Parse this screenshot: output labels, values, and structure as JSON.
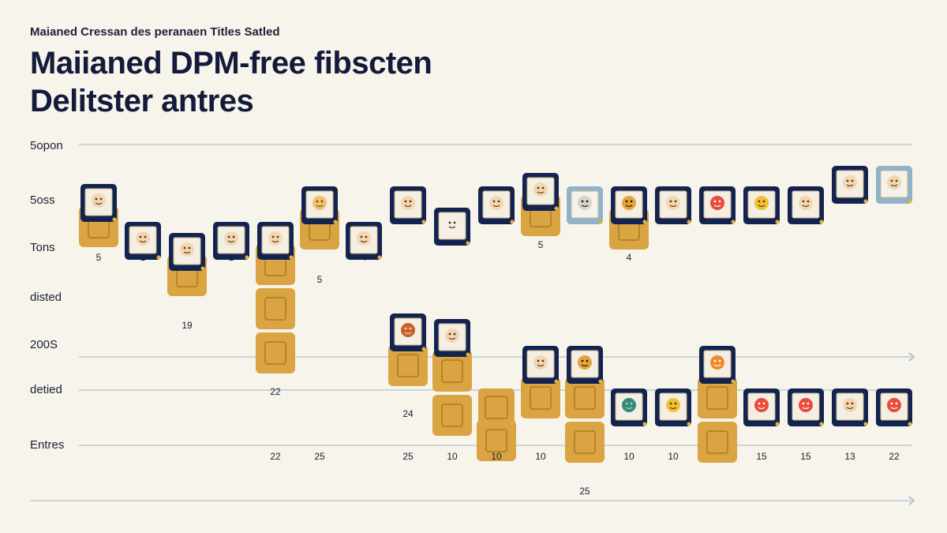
{
  "subtitle": "Maianed Cressan des peranaen Titles Satled",
  "title_line1": "Maiianed DPM-free fibscten",
  "title_line2": "Delitster antres",
  "colors": {
    "background": "#f7f4ec",
    "tile_navy": "#13234f",
    "tile_light": "#8fb3c9",
    "bar_gold": "#d9a441",
    "bar_gold_dark": "#b98428",
    "axis": "#9fb3c6",
    "marker": "#e0b040"
  },
  "chart_data": {
    "type": "bar",
    "row_labels": [
      "5opon",
      "5oss",
      "Tons",
      "disted",
      "200S",
      "detied",
      "Entres"
    ],
    "columns": [
      {
        "top_icon": "portrait-icon",
        "tile_tone": "navy",
        "count_label": "5",
        "stack_blocks": 1
      },
      {
        "top_icon": "portrait-icon",
        "tile_tone": "navy",
        "count_label": "1",
        "stack_blocks": 0
      },
      {
        "top_icon": "portrait-icon",
        "tile_tone": "navy",
        "count_label": "19",
        "stack_blocks": 1
      },
      {
        "top_icon": "portrait-icon",
        "tile_tone": "navy",
        "count_label": "1",
        "stack_blocks": 0
      },
      {
        "top_icon": "portrait-icon",
        "tile_tone": "navy",
        "count_label": "22",
        "stack_blocks": 3
      },
      {
        "top_icon": "crown-icon",
        "tile_tone": "navy",
        "count_label": "5",
        "stack_blocks": 1
      },
      {
        "top_icon": "portrait-icon",
        "tile_tone": "navy",
        "count_label": "4",
        "stack_blocks": 0
      },
      {
        "top_icon": "portrait-icon",
        "tile_tone": "navy",
        "count_label": "",
        "stack_blocks": 0
      },
      {
        "top_icon": "person-icon",
        "tile_tone": "navy",
        "count_label": "",
        "stack_blocks": 0
      },
      {
        "top_icon": "portrait-icon",
        "tile_tone": "navy",
        "count_label": "",
        "stack_blocks": 0
      },
      {
        "top_icon": "portrait-icon",
        "tile_tone": "navy",
        "count_label": "5",
        "stack_blocks": 1
      },
      {
        "top_icon": "mask-icon",
        "tile_tone": "light",
        "count_label": "",
        "stack_blocks": 0
      },
      {
        "top_icon": "diamond-icon",
        "tile_tone": "navy",
        "count_label": "4",
        "stack_blocks": 1
      },
      {
        "top_icon": "portrait-icon",
        "tile_tone": "navy",
        "count_label": "",
        "stack_blocks": 0
      },
      {
        "top_icon": "card-icon",
        "tile_tone": "navy",
        "count_label": "",
        "stack_blocks": 0
      },
      {
        "top_icon": "lion-icon",
        "tile_tone": "navy",
        "count_label": "",
        "stack_blocks": 0
      },
      {
        "top_icon": "portrait-icon",
        "tile_tone": "navy",
        "count_label": "",
        "stack_blocks": 0
      },
      {
        "top_icon": "portrait-icon",
        "tile_tone": "navy",
        "count_label": "",
        "stack_blocks": 0
      },
      {
        "top_icon": "portrait-icon",
        "tile_tone": "light",
        "count_label": "",
        "stack_blocks": 0
      }
    ],
    "lower_columns": [
      {
        "icon": "pie-icon",
        "tile_tone": "navy",
        "count_label": "24",
        "stack_blocks": 1,
        "bottom_label": "25"
      },
      {
        "icon": "portrait-icon",
        "tile_tone": "navy",
        "count_label": "",
        "stack_blocks": 2,
        "bottom_label": "10"
      },
      {
        "icon": "",
        "tile_tone": "gold",
        "count_label": "",
        "stack_blocks": 1,
        "bottom_label": "10"
      },
      {
        "icon": "portrait-icon",
        "tile_tone": "navy",
        "count_label": "",
        "stack_blocks": 1,
        "bottom_label": "10"
      },
      {
        "icon": "diamond-icon",
        "tile_tone": "navy",
        "count_label": "25",
        "stack_blocks": 2,
        "bottom_label": ""
      },
      {
        "icon": "bird-icon",
        "tile_tone": "navy",
        "count_label": "",
        "stack_blocks": 0,
        "bottom_label": "10"
      },
      {
        "icon": "lion-icon",
        "tile_tone": "navy",
        "count_label": "",
        "stack_blocks": 0,
        "bottom_label": "10"
      },
      {
        "icon": "fox-icon",
        "tile_tone": "navy",
        "count_label": "",
        "stack_blocks": 2,
        "bottom_label": ""
      },
      {
        "icon": "card-icon",
        "tile_tone": "navy",
        "count_label": "",
        "stack_blocks": 0,
        "bottom_label": "15"
      },
      {
        "icon": "card-icon",
        "tile_tone": "navy",
        "count_label": "",
        "stack_blocks": 0,
        "bottom_label": "15"
      },
      {
        "icon": "portrait-icon",
        "tile_tone": "navy",
        "count_label": "",
        "stack_blocks": 0,
        "bottom_label": "13"
      },
      {
        "icon": "card-icon",
        "tile_tone": "navy",
        "count_label": "",
        "stack_blocks": 0,
        "bottom_label": "22"
      }
    ],
    "extra_bottom_labels": [
      "22",
      "25"
    ],
    "grid": true
  }
}
